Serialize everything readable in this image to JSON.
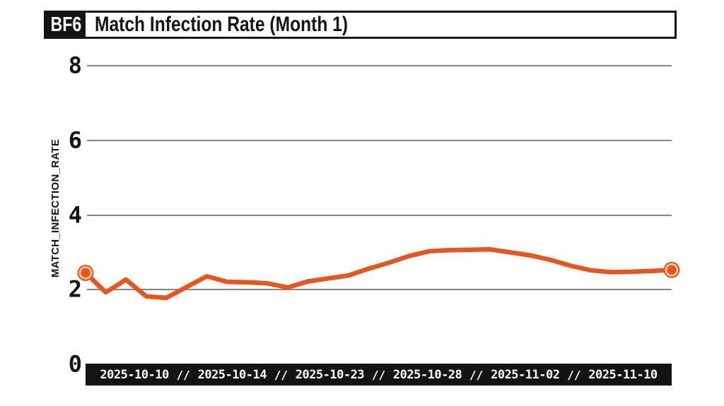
{
  "header": {
    "badge": "BF6",
    "title": "Match Infection Rate (Month 1)"
  },
  "chart_data": {
    "type": "line",
    "title": "Match Infection Rate (Month 1)",
    "ylabel": "MATCH_INFECTION_RATE",
    "xlabel": "",
    "x_tick_labels": [
      "2025-10-10",
      "2025-10-14",
      "2025-10-23",
      "2025-10-28",
      "2025-11-02",
      "2025-11-10"
    ],
    "x_tick_separator": "//",
    "y_ticks": [
      0,
      2,
      4,
      6,
      8
    ],
    "ylim": [
      0,
      8
    ],
    "grid": "horizontal",
    "legend_position": "none",
    "series": [
      {
        "name": "MATCH_INFECTION_RATE",
        "color": "#e5571e",
        "endpoint_markers": true,
        "values": [
          2.45,
          1.93,
          2.27,
          1.82,
          1.78,
          2.07,
          2.36,
          2.21,
          2.2,
          2.17,
          2.06,
          2.22,
          2.3,
          2.38,
          2.56,
          2.72,
          2.9,
          3.03,
          3.06,
          3.07,
          3.08,
          3.0,
          2.92,
          2.8,
          2.64,
          2.52,
          2.47,
          2.48,
          2.5,
          2.53
        ]
      }
    ]
  },
  "colors": {
    "accent_orange": "#e5571e",
    "marker_halo": "#f7d3b1",
    "ink_black": "#141414",
    "grid_gray": "#858585",
    "axis_bar_text": "#ffffff",
    "background": "#ffffff"
  }
}
